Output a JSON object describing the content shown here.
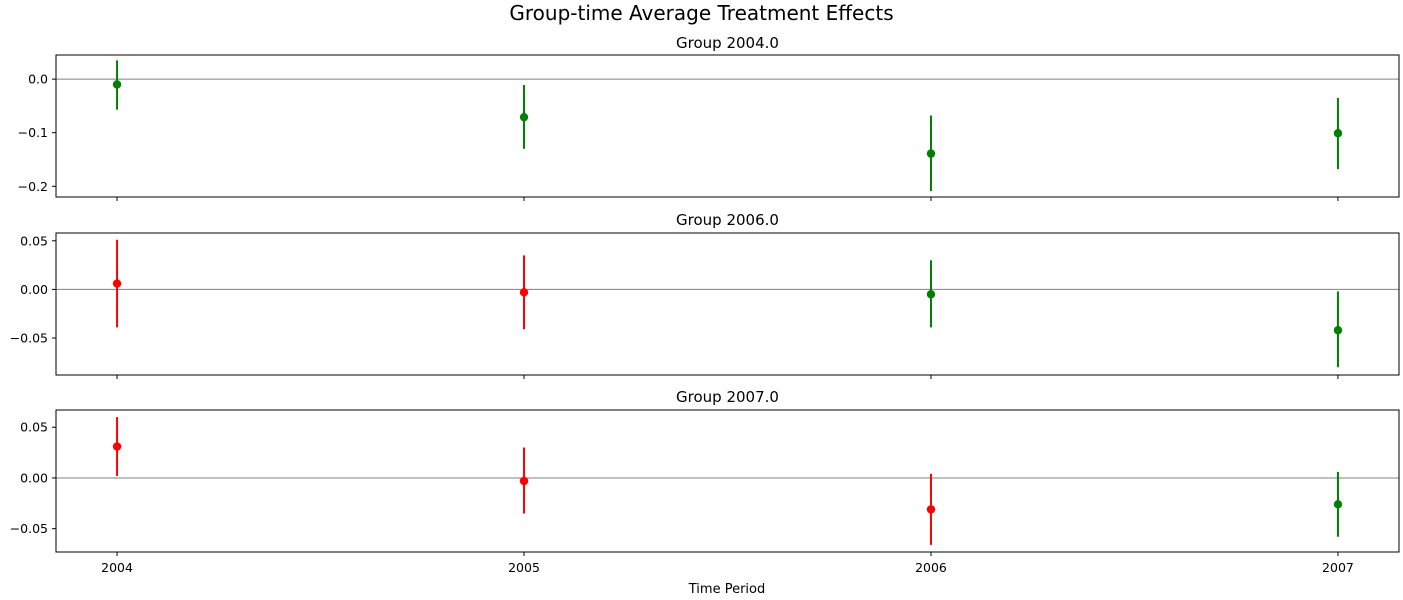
{
  "chart_data": {
    "type": "scatter",
    "title": "Group-time Average Treatment Effects",
    "xlabel": "Time Period",
    "x_ticks": [
      "2004",
      "2005",
      "2006",
      "2007"
    ],
    "colors": {
      "post_treatment": "#008000",
      "pre_treatment": "#ff0000",
      "zero_line": "#808080"
    },
    "panels": [
      {
        "title": "Group 2004.0",
        "ylim": [
          -0.22,
          0.045
        ],
        "y_ticks": [
          0.0,
          -0.1,
          -0.2
        ],
        "y_tick_labels": [
          "0.0",
          "−0.1",
          "−0.2"
        ],
        "points": [
          {
            "x": 2004,
            "y": -0.01,
            "lower": -0.057,
            "upper": 0.035,
            "color": "#008000"
          },
          {
            "x": 2005,
            "y": -0.071,
            "lower": -0.13,
            "upper": -0.011,
            "color": "#008000"
          },
          {
            "x": 2006,
            "y": -0.139,
            "lower": -0.209,
            "upper": -0.068,
            "color": "#008000"
          },
          {
            "x": 2007,
            "y": -0.101,
            "lower": -0.168,
            "upper": -0.035,
            "color": "#008000"
          }
        ]
      },
      {
        "title": "Group 2006.0",
        "ylim": [
          -0.088,
          0.058
        ],
        "y_ticks": [
          0.05,
          0.0,
          -0.05
        ],
        "y_tick_labels": [
          "0.05",
          "0.00",
          "−0.05"
        ],
        "points": [
          {
            "x": 2004,
            "y": 0.006,
            "lower": -0.039,
            "upper": 0.051,
            "color": "#ff0000"
          },
          {
            "x": 2005,
            "y": -0.003,
            "lower": -0.041,
            "upper": 0.035,
            "color": "#ff0000"
          },
          {
            "x": 2006,
            "y": -0.005,
            "lower": -0.039,
            "upper": 0.03,
            "color": "#008000"
          },
          {
            "x": 2007,
            "y": -0.042,
            "lower": -0.08,
            "upper": -0.002,
            "color": "#008000"
          }
        ]
      },
      {
        "title": "Group 2007.0",
        "ylim": [
          -0.073,
          0.067
        ],
        "y_ticks": [
          0.05,
          0.0,
          -0.05
        ],
        "y_tick_labels": [
          "0.05",
          "0.00",
          "−0.05"
        ],
        "points": [
          {
            "x": 2004,
            "y": 0.031,
            "lower": 0.002,
            "upper": 0.06,
            "color": "#ff0000"
          },
          {
            "x": 2005,
            "y": -0.003,
            "lower": -0.035,
            "upper": 0.03,
            "color": "#ff0000"
          },
          {
            "x": 2006,
            "y": -0.031,
            "lower": -0.066,
            "upper": 0.004,
            "color": "#ff0000"
          },
          {
            "x": 2007,
            "y": -0.026,
            "lower": -0.058,
            "upper": 0.006,
            "color": "#008000"
          }
        ]
      }
    ]
  }
}
